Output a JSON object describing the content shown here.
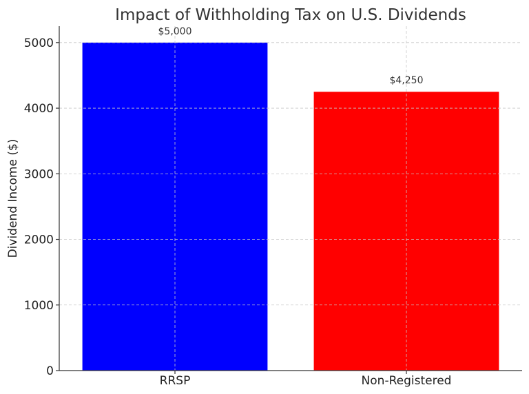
{
  "chart_data": {
    "type": "bar",
    "title": "Impact of Withholding Tax on U.S. Dividends",
    "xlabel": "",
    "ylabel": "Dividend Income ($)",
    "categories": [
      "RRSP",
      "Non-Registered"
    ],
    "values": [
      5000,
      4250
    ],
    "data_labels": [
      "$5,000",
      "$4,250"
    ],
    "colors": [
      "#0000ff",
      "#ff0000"
    ],
    "ylim": [
      0,
      5250
    ],
    "yticks": [
      0,
      1000,
      2000,
      3000,
      4000,
      5000
    ],
    "grid": true,
    "legend": "none"
  }
}
